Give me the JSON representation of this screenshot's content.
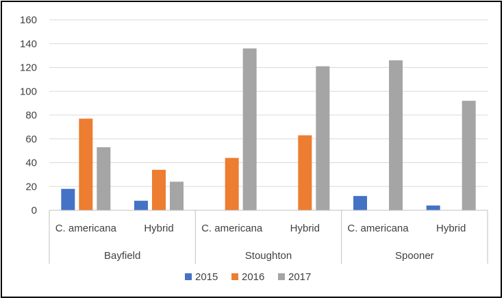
{
  "chart_data": {
    "type": "bar",
    "groups": [
      {
        "name": "Bayfield",
        "categories": [
          "C. americana",
          "Hybrid"
        ]
      },
      {
        "name": "Stoughton",
        "categories": [
          "C. americana",
          "Hybrid"
        ]
      },
      {
        "name": "Spooner",
        "categories": [
          "C. americana",
          "Hybrid"
        ]
      }
    ],
    "series": [
      {
        "name": "2015",
        "color": "#4472c4",
        "values": [
          18,
          8,
          0,
          0,
          12,
          4
        ]
      },
      {
        "name": "2016",
        "color": "#ed7d31",
        "values": [
          77,
          34,
          44,
          63,
          0,
          0
        ]
      },
      {
        "name": "2017",
        "color": "#a5a5a5",
        "values": [
          53,
          24,
          136,
          121,
          126,
          92
        ]
      }
    ],
    "ylim": [
      0,
      160
    ],
    "yticks": [
      "0",
      "20",
      "40",
      "60",
      "80",
      "100",
      "120",
      "140",
      "160"
    ],
    "grid": true,
    "legend_position": "bottom"
  }
}
